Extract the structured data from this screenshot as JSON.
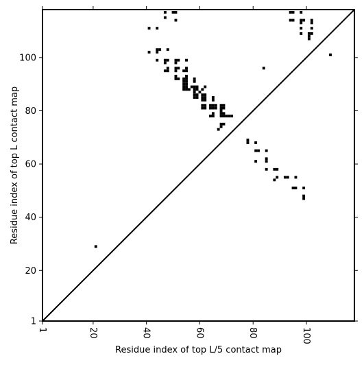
{
  "chart_data": {
    "type": "scatter",
    "title": "",
    "xlabel": "Residue index of top L/5 contact map",
    "ylabel": "Residue index of top L contact map",
    "xlim": [
      1,
      118
    ],
    "ylim": [
      1,
      118
    ],
    "x_ticks": [
      1,
      20,
      40,
      60,
      80,
      100
    ],
    "y_ticks": [
      1,
      20,
      40,
      60,
      80,
      100
    ],
    "x_tick_labels": [
      "1",
      "20",
      "40",
      "60",
      "80",
      "100"
    ],
    "y_tick_labels": [
      "1",
      "20",
      "40",
      "60",
      "80",
      "100"
    ],
    "grid": false,
    "diagonal": true,
    "marker_color": "#000000",
    "series": [
      {
        "points": [
          [
            21,
            29
          ],
          [
            84,
            96
          ],
          [
            109,
            101
          ],
          [
            41,
            111
          ],
          [
            44,
            111
          ],
          [
            47,
            115
          ],
          [
            47,
            117
          ],
          [
            50,
            117
          ],
          [
            51,
            117
          ],
          [
            51,
            114
          ],
          [
            41,
            102
          ],
          [
            44,
            102
          ],
          [
            44,
            103
          ],
          [
            45,
            103
          ],
          [
            48,
            103
          ],
          [
            44,
            99
          ],
          [
            47,
            99
          ],
          [
            47,
            98
          ],
          [
            48,
            99
          ],
          [
            47,
            95
          ],
          [
            48,
            95
          ],
          [
            48,
            96
          ],
          [
            51,
            99
          ],
          [
            52,
            99
          ],
          [
            51,
            98
          ],
          [
            55,
            99
          ],
          [
            51,
            96
          ],
          [
            52,
            96
          ],
          [
            51,
            95
          ],
          [
            54,
            95
          ],
          [
            55,
            95
          ],
          [
            55,
            96
          ],
          [
            51,
            93
          ],
          [
            51,
            92
          ],
          [
            52,
            92
          ],
          [
            54,
            92
          ],
          [
            54,
            91
          ],
          [
            55,
            93
          ],
          [
            55,
            92
          ],
          [
            55,
            91
          ],
          [
            54,
            90
          ],
          [
            55,
            90
          ],
          [
            54,
            89
          ],
          [
            55,
            89
          ],
          [
            54,
            88
          ],
          [
            55,
            88
          ],
          [
            56,
            88
          ],
          [
            58,
            92
          ],
          [
            58,
            91
          ],
          [
            57,
            89
          ],
          [
            58,
            89
          ],
          [
            59,
            89
          ],
          [
            58,
            88
          ],
          [
            59,
            88
          ],
          [
            58,
            87
          ],
          [
            58,
            86
          ],
          [
            59,
            86
          ],
          [
            58,
            85
          ],
          [
            59,
            85
          ],
          [
            60,
            87
          ],
          [
            61,
            88
          ],
          [
            62,
            89
          ],
          [
            61,
            86
          ],
          [
            62,
            86
          ],
          [
            61,
            85
          ],
          [
            62,
            85
          ],
          [
            61,
            84
          ],
          [
            62,
            84
          ],
          [
            61,
            82
          ],
          [
            62,
            82
          ],
          [
            61,
            81
          ],
          [
            62,
            81
          ],
          [
            64,
            82
          ],
          [
            65,
            82
          ],
          [
            66,
            82
          ],
          [
            64,
            81
          ],
          [
            65,
            81
          ],
          [
            66,
            81
          ],
          [
            65,
            84
          ],
          [
            65,
            85
          ],
          [
            64,
            78
          ],
          [
            65,
            78
          ],
          [
            65,
            79
          ],
          [
            68,
            82
          ],
          [
            69,
            82
          ],
          [
            68,
            81
          ],
          [
            69,
            81
          ],
          [
            68,
            80
          ],
          [
            68,
            79
          ],
          [
            69,
            79
          ],
          [
            68,
            78
          ],
          [
            69,
            78
          ],
          [
            70,
            78
          ],
          [
            71,
            78
          ],
          [
            72,
            78
          ],
          [
            68,
            75
          ],
          [
            69,
            75
          ],
          [
            68,
            74
          ],
          [
            67,
            73
          ],
          [
            78,
            69
          ],
          [
            78,
            68
          ],
          [
            81,
            68
          ],
          [
            81,
            65
          ],
          [
            82,
            65
          ],
          [
            85,
            65
          ],
          [
            85,
            62
          ],
          [
            85,
            61
          ],
          [
            81,
            61
          ],
          [
            85,
            58
          ],
          [
            88,
            58
          ],
          [
            89,
            58
          ],
          [
            88,
            54
          ],
          [
            89,
            55
          ],
          [
            92,
            55
          ],
          [
            93,
            55
          ],
          [
            96,
            55
          ],
          [
            95,
            51
          ],
          [
            96,
            51
          ],
          [
            99,
            51
          ],
          [
            99,
            48
          ],
          [
            99,
            47
          ],
          [
            94,
            117
          ],
          [
            95,
            117
          ],
          [
            98,
            117
          ],
          [
            94,
            114
          ],
          [
            95,
            114
          ],
          [
            98,
            114
          ],
          [
            99,
            114
          ],
          [
            102,
            114
          ],
          [
            102,
            113
          ],
          [
            98,
            113
          ],
          [
            98,
            111
          ],
          [
            102,
            111
          ],
          [
            98,
            109
          ],
          [
            101,
            109
          ],
          [
            102,
            109
          ],
          [
            101,
            108
          ],
          [
            101,
            107
          ]
        ]
      }
    ]
  }
}
